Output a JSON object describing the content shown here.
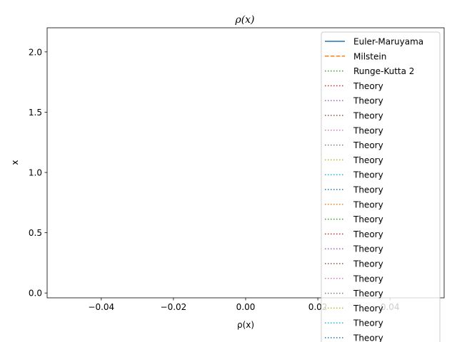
{
  "chart_data": {
    "type": "line",
    "title": "ρ(x)",
    "xlabel": "ρ(x)",
    "ylabel": "x",
    "xlim": [
      -0.055,
      0.055
    ],
    "ylim": [
      -0.04,
      2.2
    ],
    "x_ticks": [
      {
        "value": -0.04,
        "label": "−0.04"
      },
      {
        "value": -0.02,
        "label": "−0.02"
      },
      {
        "value": 0.0,
        "label": "0.00"
      },
      {
        "value": 0.02,
        "label": "0.02"
      },
      {
        "value": 0.04,
        "label": "0.04"
      }
    ],
    "y_ticks": [
      {
        "value": 0.0,
        "label": "0.0"
      },
      {
        "value": 0.5,
        "label": "0.5"
      },
      {
        "value": 1.0,
        "label": "1.0"
      },
      {
        "value": 1.5,
        "label": "1.5"
      },
      {
        "value": 2.0,
        "label": "2.0"
      }
    ],
    "grid": false,
    "legend_position": "top-right",
    "series": [
      {
        "name": "Euler-Maruyama",
        "color": "#1f77b4",
        "style": "solid",
        "values": []
      },
      {
        "name": "Milstein",
        "color": "#ff7f0e",
        "style": "dashed",
        "values": []
      },
      {
        "name": "Runge-Kutta 2",
        "color": "#2ca02c",
        "style": "dotted",
        "values": []
      },
      {
        "name": "Theory",
        "color": "#d62728",
        "style": "dotted",
        "values": []
      },
      {
        "name": "Theory",
        "color": "#9467bd",
        "style": "dotted",
        "values": []
      },
      {
        "name": "Theory",
        "color": "#8c564b",
        "style": "dotted",
        "values": []
      },
      {
        "name": "Theory",
        "color": "#e377c2",
        "style": "dotted",
        "values": []
      },
      {
        "name": "Theory",
        "color": "#7f7f7f",
        "style": "dotted",
        "values": []
      },
      {
        "name": "Theory",
        "color": "#bcbd22",
        "style": "dotted",
        "values": []
      },
      {
        "name": "Theory",
        "color": "#17becf",
        "style": "dotted",
        "values": []
      },
      {
        "name": "Theory",
        "color": "#1f77b4",
        "style": "dotted",
        "values": []
      },
      {
        "name": "Theory",
        "color": "#ff7f0e",
        "style": "dotted",
        "values": []
      },
      {
        "name": "Theory",
        "color": "#2ca02c",
        "style": "dotted",
        "values": []
      },
      {
        "name": "Theory",
        "color": "#d62728",
        "style": "dotted",
        "values": []
      },
      {
        "name": "Theory",
        "color": "#9467bd",
        "style": "dotted",
        "values": []
      },
      {
        "name": "Theory",
        "color": "#8c564b",
        "style": "dotted",
        "values": []
      },
      {
        "name": "Theory",
        "color": "#e377c2",
        "style": "dotted",
        "values": []
      },
      {
        "name": "Theory",
        "color": "#7f7f7f",
        "style": "dotted",
        "values": []
      },
      {
        "name": "Theory",
        "color": "#bcbd22",
        "style": "dotted",
        "values": []
      },
      {
        "name": "Theory",
        "color": "#17becf",
        "style": "dotted",
        "values": []
      },
      {
        "name": "Theory",
        "color": "#1f77b4",
        "style": "dotted",
        "values": []
      }
    ]
  }
}
